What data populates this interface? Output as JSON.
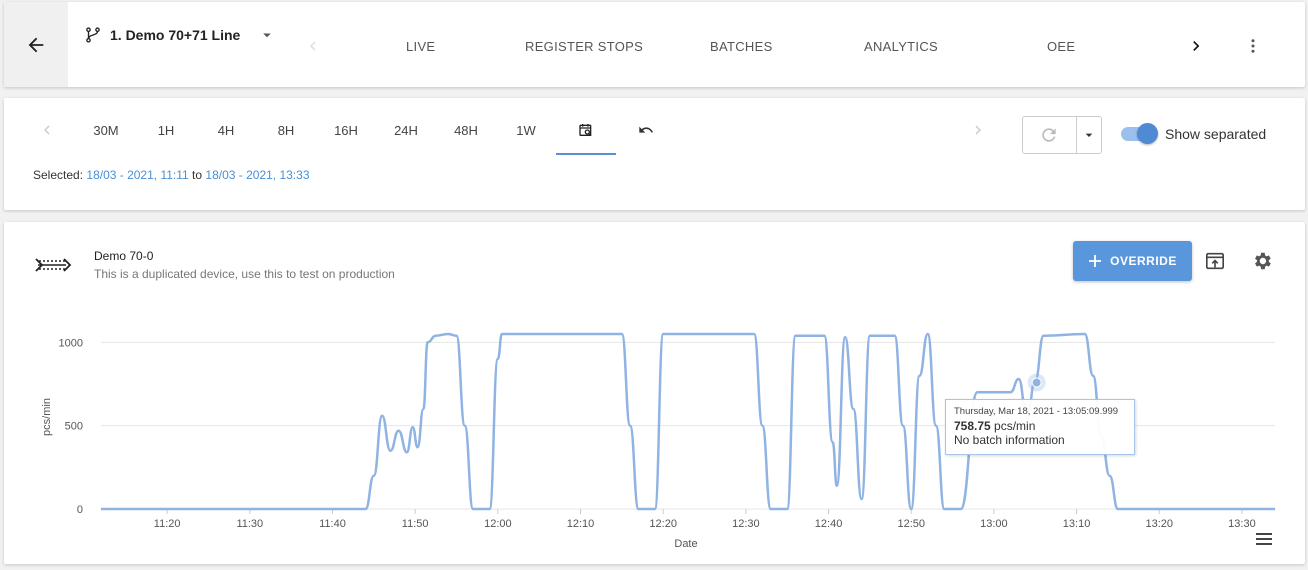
{
  "header": {
    "line_name": "1. Demo 70+71 Line",
    "tabs": [
      {
        "label": "LIVE"
      },
      {
        "label": "REGISTER STOPS"
      },
      {
        "label": "BATCHES"
      },
      {
        "label": "ANALYTICS"
      },
      {
        "label": "OEE"
      }
    ]
  },
  "toolbar": {
    "ranges": [
      "30M",
      "1H",
      "4H",
      "8H",
      "16H",
      "24H",
      "48H",
      "1W"
    ],
    "show_separated_label": "Show separated",
    "show_separated": true,
    "selected_prefix": "Selected:",
    "selected_from": "18/03 - 2021, 11:11",
    "selected_to_word": "to",
    "selected_to": "18/03 - 2021, 13:33"
  },
  "device": {
    "name": "Demo 70-0",
    "description": "This is a duplicated device, use this to test on production",
    "override_label": "OVERRIDE"
  },
  "tooltip": {
    "date": "Thursday, Mar 18, 2021 - 13:05:09.999",
    "value": "758.75",
    "unit": "pcs/min",
    "batch": "No batch information"
  },
  "colors": {
    "accent": "#5a96dc",
    "series": "#8fb3e2"
  },
  "chart_data": {
    "type": "line",
    "xlabel": "Date",
    "ylabel": "pcs/min",
    "yticks": [
      0,
      500,
      1000
    ],
    "ylim": [
      0,
      1050
    ],
    "xticks": [
      "11:20",
      "11:30",
      "11:40",
      "11:50",
      "12:00",
      "12:10",
      "12:20",
      "12:30",
      "12:40",
      "12:50",
      "13:00",
      "13:10",
      "13:20",
      "13:30"
    ],
    "xlim": [
      "11:12",
      "13:34"
    ],
    "series": [
      {
        "values": [
          [
            "11:12",
            0
          ],
          [
            "11:44",
            0
          ],
          [
            "11:45",
            200
          ],
          [
            "11:46",
            560
          ],
          [
            "11:47",
            350
          ],
          [
            "11:48",
            470
          ],
          [
            "11:49",
            340
          ],
          [
            "11:49.7",
            490
          ],
          [
            "11:50.3",
            370
          ],
          [
            "11:51",
            600
          ],
          [
            "11:51.5",
            1000
          ],
          [
            "11:52.5",
            1040
          ],
          [
            "11:54",
            1050
          ],
          [
            "11:55",
            1040
          ],
          [
            "11:56",
            500
          ],
          [
            "11:57",
            0
          ],
          [
            "11:59",
            0
          ],
          [
            "12:00",
            900
          ],
          [
            "12:00.5",
            1050
          ],
          [
            "12:15",
            1050
          ],
          [
            "12:16",
            500
          ],
          [
            "12:17",
            0
          ],
          [
            "12:19",
            0
          ],
          [
            "12:20",
            1050
          ],
          [
            "12:31",
            1050
          ],
          [
            "12:32",
            500
          ],
          [
            "12:33",
            0
          ],
          [
            "12:35",
            0
          ],
          [
            "12:36",
            1040
          ],
          [
            "12:39.5",
            1040
          ],
          [
            "12:40.5",
            400
          ],
          [
            "12:41",
            140
          ],
          [
            "12:42",
            1030
          ],
          [
            "12:43",
            600
          ],
          [
            "12:44",
            60
          ],
          [
            "12:45",
            1040
          ],
          [
            "12:48",
            1040
          ],
          [
            "12:49",
            500
          ],
          [
            "12:50",
            0
          ],
          [
            "12:51",
            800
          ],
          [
            "12:52",
            1050
          ],
          [
            "12:53",
            500
          ],
          [
            "12:54",
            0
          ],
          [
            "12:56",
            0
          ],
          [
            "12:58",
            700
          ],
          [
            "13:02",
            700
          ],
          [
            "13:03",
            780
          ],
          [
            "13:04",
            550
          ],
          [
            "13:05",
            770
          ],
          [
            "13:06",
            1040
          ],
          [
            "13:11",
            1050
          ],
          [
            "13:12",
            800
          ],
          [
            "13:13",
            430
          ],
          [
            "13:14",
            200
          ],
          [
            "13:15",
            0
          ],
          [
            "13:34",
            0
          ]
        ]
      }
    ],
    "highlight": {
      "x": "13:05:09.999",
      "y": 758.75
    }
  }
}
